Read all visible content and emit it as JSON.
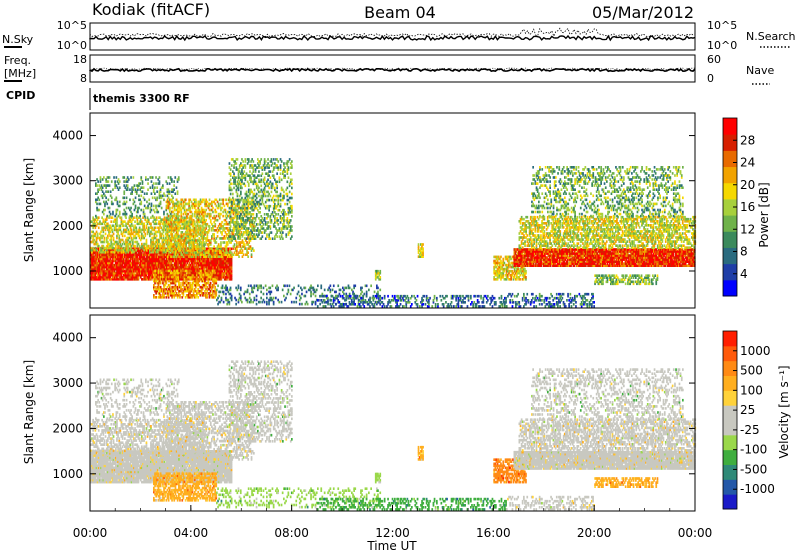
{
  "header": {
    "station": "Kodiak (fitACF)",
    "beam": "Beam 04",
    "date": "05/Mar/2012"
  },
  "noise_panel": {
    "left_label": "N.Sky",
    "right_label": "N.Search",
    "left_ticks": [
      "10^5",
      "10^0"
    ],
    "right_ticks": [
      "10^5",
      "10^0"
    ]
  },
  "freq_panel": {
    "left_label_line1": "Freq.",
    "left_label_line2": "[MHz]",
    "left_ticks": [
      "18",
      "8"
    ],
    "right_label": "Nave",
    "right_ticks": [
      "60",
      "0"
    ]
  },
  "cpid": {
    "label": "CPID",
    "value": "themis 3300 RF"
  },
  "chart_data": [
    {
      "type": "heatmap",
      "quantity": "Power",
      "ylabel": "Slant Range [km]",
      "ylim": [
        180,
        4500
      ],
      "yticks": [
        1000,
        2000,
        3000,
        4000
      ],
      "xlim_hours": [
        0,
        24
      ],
      "colorbar": {
        "label": "Power [dB]",
        "ticks": [
          "28",
          "24",
          "20",
          "16",
          "12",
          "8",
          "4"
        ],
        "colors": [
          "#0000ff",
          "#1f3ea7",
          "#2a6b7f",
          "#3b8a5c",
          "#6fb24a",
          "#a7d03c",
          "#f5d800",
          "#f2a300",
          "#e86a00",
          "#d71f00",
          "#ff0000"
        ]
      }
    },
    {
      "type": "heatmap",
      "quantity": "Velocity",
      "ylabel": "Slant Range [km]",
      "ylim": [
        180,
        4500
      ],
      "yticks": [
        1000,
        2000,
        3000,
        4000
      ],
      "xlim_hours": [
        0,
        24
      ],
      "colorbar": {
        "label": "Velocity [m s⁻¹]",
        "ticks": [
          "1000",
          "500",
          "100",
          "25",
          "-25",
          "-100",
          "-500",
          "-1000"
        ],
        "colors": [
          "#1a1ac8",
          "#2458a8",
          "#2f8a78",
          "#3fae3f",
          "#9ad84a",
          "#c8c8c0",
          "#c8c8c0",
          "#ffd23a",
          "#ffae1e",
          "#ff8a14",
          "#ff5a0a",
          "#ff1e00"
        ]
      }
    }
  ],
  "x_axis": {
    "label": "Time UT",
    "ticks": [
      "00:00",
      "04:00",
      "08:00",
      "12:00",
      "16:00",
      "20:00",
      "00:00"
    ]
  }
}
